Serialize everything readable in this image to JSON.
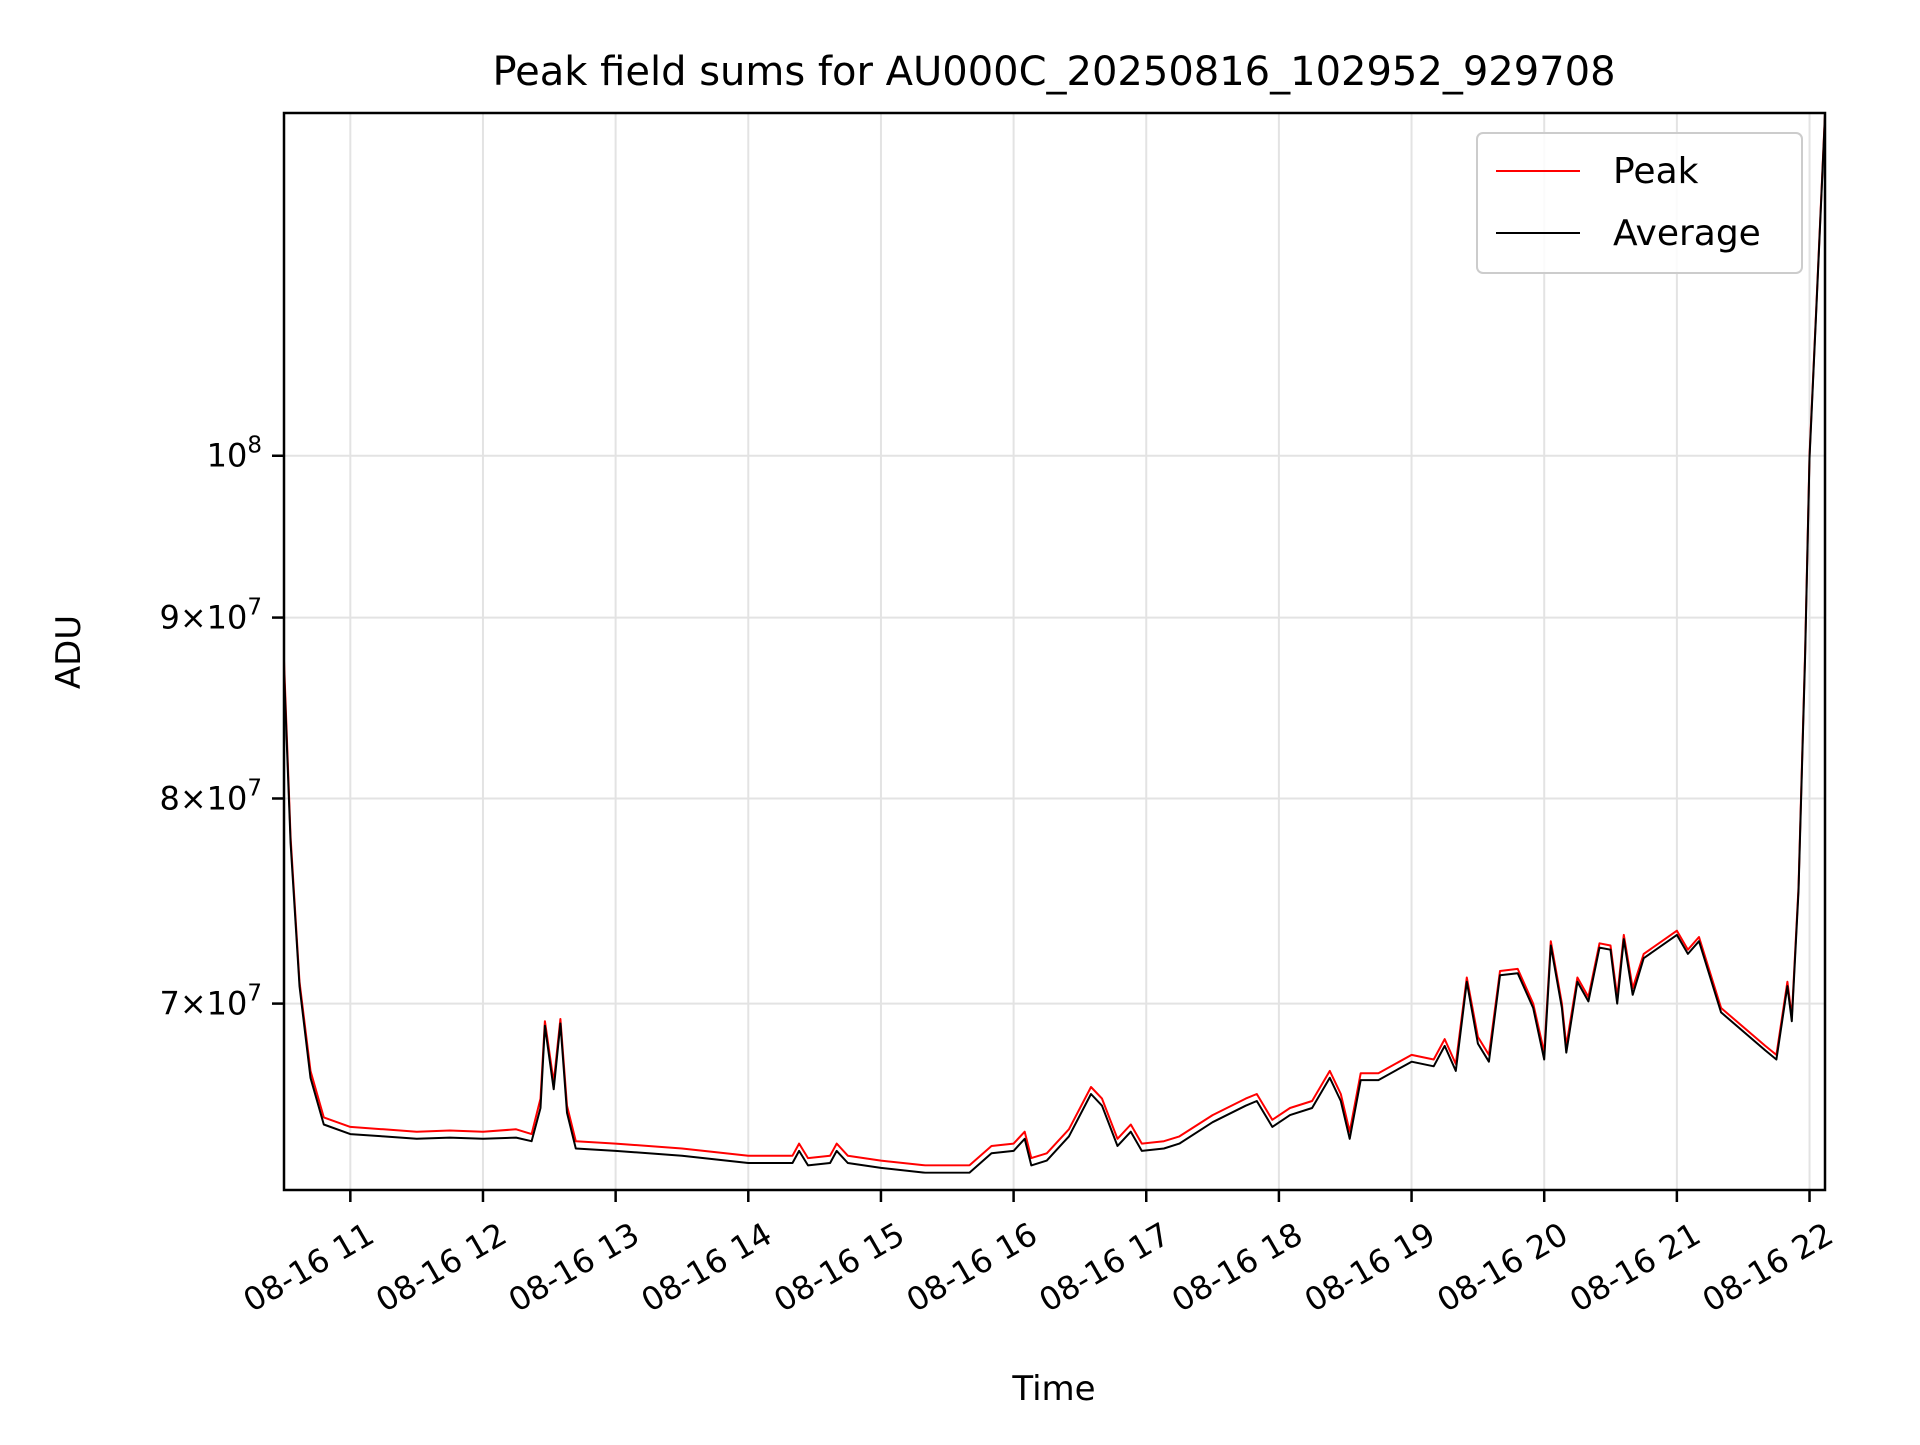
{
  "chart_data": {
    "type": "line",
    "title": "Peak field sums for AU000C_20250816_102952_929708",
    "xlabel": "Time",
    "ylabel": "ADU",
    "y_scale": "log",
    "grid": true,
    "legend_position": "top-right",
    "xlim": [
      "08-16 10:30",
      "08-16 22:07"
    ],
    "ylim": [
      62000000,
      125000000
    ],
    "x_ticks": [
      {
        "value": "08-16 11:00",
        "label": "08-16 11"
      },
      {
        "value": "08-16 12:00",
        "label": "08-16 12"
      },
      {
        "value": "08-16 13:00",
        "label": "08-16 13"
      },
      {
        "value": "08-16 14:00",
        "label": "08-16 14"
      },
      {
        "value": "08-16 15:00",
        "label": "08-16 15"
      },
      {
        "value": "08-16 16:00",
        "label": "08-16 16"
      },
      {
        "value": "08-16 17:00",
        "label": "08-16 17"
      },
      {
        "value": "08-16 18:00",
        "label": "08-16 18"
      },
      {
        "value": "08-16 19:00",
        "label": "08-16 19"
      },
      {
        "value": "08-16 20:00",
        "label": "08-16 20"
      },
      {
        "value": "08-16 21:00",
        "label": "08-16 21"
      },
      {
        "value": "08-16 22:00",
        "label": "08-16 22"
      }
    ],
    "y_ticks": [
      {
        "value": 70000000,
        "coef": "7",
        "exp": "7"
      },
      {
        "value": 80000000,
        "coef": "8",
        "exp": "7"
      },
      {
        "value": 90000000,
        "coef": "9",
        "exp": "7"
      },
      {
        "value": 100000000,
        "coef": "",
        "exp": "8"
      }
    ],
    "series": [
      {
        "name": "Peak",
        "color": "#ff0000",
        "points": [
          [
            "08-16 10:30",
            87500000
          ],
          [
            "08-16 10:33",
            78000000
          ],
          [
            "08-16 10:37",
            71000000
          ],
          [
            "08-16 10:42",
            67000000
          ],
          [
            "08-16 10:48",
            65000000
          ],
          [
            "08-16 11:00",
            64600000
          ],
          [
            "08-16 11:15",
            64500000
          ],
          [
            "08-16 11:30",
            64400000
          ],
          [
            "08-16 11:45",
            64450000
          ],
          [
            "08-16 12:00",
            64400000
          ],
          [
            "08-16 12:15",
            64500000
          ],
          [
            "08-16 12:22",
            64300000
          ],
          [
            "08-16 12:26",
            65800000
          ],
          [
            "08-16 12:28",
            69200000
          ],
          [
            "08-16 12:32",
            66500000
          ],
          [
            "08-16 12:35",
            69300000
          ],
          [
            "08-16 12:38",
            65500000
          ],
          [
            "08-16 12:42",
            64000000
          ],
          [
            "08-16 13:00",
            63900000
          ],
          [
            "08-16 13:30",
            63700000
          ],
          [
            "08-16 14:00",
            63400000
          ],
          [
            "08-16 14:20",
            63400000
          ],
          [
            "08-16 14:23",
            63900000
          ],
          [
            "08-16 14:27",
            63300000
          ],
          [
            "08-16 14:37",
            63400000
          ],
          [
            "08-16 14:40",
            63900000
          ],
          [
            "08-16 14:45",
            63400000
          ],
          [
            "08-16 15:00",
            63200000
          ],
          [
            "08-16 15:20",
            63000000
          ],
          [
            "08-16 15:40",
            63000000
          ],
          [
            "08-16 15:50",
            63800000
          ],
          [
            "08-16 16:00",
            63900000
          ],
          [
            "08-16 16:05",
            64400000
          ],
          [
            "08-16 16:08",
            63300000
          ],
          [
            "08-16 16:15",
            63500000
          ],
          [
            "08-16 16:25",
            64500000
          ],
          [
            "08-16 16:35",
            66300000
          ],
          [
            "08-16 16:40",
            65800000
          ],
          [
            "08-16 16:47",
            64100000
          ],
          [
            "08-16 16:53",
            64700000
          ],
          [
            "08-16 16:58",
            63900000
          ],
          [
            "08-16 17:08",
            64000000
          ],
          [
            "08-16 17:15",
            64200000
          ],
          [
            "08-16 17:30",
            65100000
          ],
          [
            "08-16 17:45",
            65800000
          ],
          [
            "08-16 17:50",
            66000000
          ],
          [
            "08-16 17:57",
            64900000
          ],
          [
            "08-16 18:05",
            65400000
          ],
          [
            "08-16 18:15",
            65700000
          ],
          [
            "08-16 18:23",
            67000000
          ],
          [
            "08-16 18:28",
            66000000
          ],
          [
            "08-16 18:32",
            64400000
          ],
          [
            "08-16 18:37",
            66900000
          ],
          [
            "08-16 18:45",
            66900000
          ],
          [
            "08-16 19:00",
            67700000
          ],
          [
            "08-16 19:10",
            67500000
          ],
          [
            "08-16 19:15",
            68400000
          ],
          [
            "08-16 19:20",
            67300000
          ],
          [
            "08-16 19:25",
            71200000
          ],
          [
            "08-16 19:30",
            68500000
          ],
          [
            "08-16 19:35",
            67700000
          ],
          [
            "08-16 19:40",
            71500000
          ],
          [
            "08-16 19:48",
            71600000
          ],
          [
            "08-16 19:55",
            70000000
          ],
          [
            "08-16 20:00",
            67800000
          ],
          [
            "08-16 20:03",
            72900000
          ],
          [
            "08-16 20:08",
            70000000
          ],
          [
            "08-16 20:10",
            68100000
          ],
          [
            "08-16 20:15",
            71200000
          ],
          [
            "08-16 20:20",
            70300000
          ],
          [
            "08-16 20:25",
            72800000
          ],
          [
            "08-16 20:30",
            72700000
          ],
          [
            "08-16 20:33",
            70300000
          ],
          [
            "08-16 20:36",
            73200000
          ],
          [
            "08-16 20:40",
            70700000
          ],
          [
            "08-16 20:45",
            72300000
          ],
          [
            "08-16 21:00",
            73400000
          ],
          [
            "08-16 21:05",
            72500000
          ],
          [
            "08-16 21:10",
            73100000
          ],
          [
            "08-16 21:20",
            69800000
          ],
          [
            "08-16 21:40",
            68100000
          ],
          [
            "08-16 21:45",
            67700000
          ],
          [
            "08-16 21:50",
            71000000
          ],
          [
            "08-16 21:52",
            69400000
          ],
          [
            "08-16 21:55",
            75500000
          ],
          [
            "08-16 21:58",
            88000000
          ],
          [
            "08-16 22:00",
            100000000
          ],
          [
            "08-16 22:03",
            110000000
          ],
          [
            "08-16 22:07",
            125000000
          ]
        ]
      },
      {
        "name": "Average",
        "color": "#000000",
        "points": [
          [
            "08-16 10:30",
            87000000
          ],
          [
            "08-16 10:33",
            77700000
          ],
          [
            "08-16 10:37",
            70800000
          ],
          [
            "08-16 10:42",
            66700000
          ],
          [
            "08-16 10:48",
            64700000
          ],
          [
            "08-16 11:00",
            64300000
          ],
          [
            "08-16 11:15",
            64200000
          ],
          [
            "08-16 11:30",
            64100000
          ],
          [
            "08-16 11:45",
            64150000
          ],
          [
            "08-16 12:00",
            64100000
          ],
          [
            "08-16 12:15",
            64150000
          ],
          [
            "08-16 12:22",
            64000000
          ],
          [
            "08-16 12:26",
            65400000
          ],
          [
            "08-16 12:28",
            69000000
          ],
          [
            "08-16 12:32",
            66200000
          ],
          [
            "08-16 12:35",
            69100000
          ],
          [
            "08-16 12:38",
            65200000
          ],
          [
            "08-16 12:42",
            63700000
          ],
          [
            "08-16 13:00",
            63600000
          ],
          [
            "08-16 13:30",
            63400000
          ],
          [
            "08-16 14:00",
            63100000
          ],
          [
            "08-16 14:20",
            63100000
          ],
          [
            "08-16 14:23",
            63600000
          ],
          [
            "08-16 14:27",
            63000000
          ],
          [
            "08-16 14:37",
            63100000
          ],
          [
            "08-16 14:40",
            63600000
          ],
          [
            "08-16 14:45",
            63100000
          ],
          [
            "08-16 15:00",
            62900000
          ],
          [
            "08-16 15:20",
            62700000
          ],
          [
            "08-16 15:40",
            62700000
          ],
          [
            "08-16 15:50",
            63500000
          ],
          [
            "08-16 16:00",
            63600000
          ],
          [
            "08-16 16:05",
            64100000
          ],
          [
            "08-16 16:08",
            63000000
          ],
          [
            "08-16 16:15",
            63200000
          ],
          [
            "08-16 16:25",
            64200000
          ],
          [
            "08-16 16:35",
            66000000
          ],
          [
            "08-16 16:40",
            65500000
          ],
          [
            "08-16 16:47",
            63800000
          ],
          [
            "08-16 16:53",
            64400000
          ],
          [
            "08-16 16:58",
            63600000
          ],
          [
            "08-16 17:08",
            63700000
          ],
          [
            "08-16 17:15",
            63900000
          ],
          [
            "08-16 17:30",
            64800000
          ],
          [
            "08-16 17:45",
            65500000
          ],
          [
            "08-16 17:50",
            65700000
          ],
          [
            "08-16 17:57",
            64600000
          ],
          [
            "08-16 18:05",
            65100000
          ],
          [
            "08-16 18:15",
            65400000
          ],
          [
            "08-16 18:23",
            66700000
          ],
          [
            "08-16 18:28",
            65700000
          ],
          [
            "08-16 18:32",
            64100000
          ],
          [
            "08-16 18:37",
            66600000
          ],
          [
            "08-16 18:45",
            66600000
          ],
          [
            "08-16 19:00",
            67400000
          ],
          [
            "08-16 19:10",
            67200000
          ],
          [
            "08-16 19:15",
            68100000
          ],
          [
            "08-16 19:20",
            67000000
          ],
          [
            "08-16 19:25",
            71000000
          ],
          [
            "08-16 19:30",
            68200000
          ],
          [
            "08-16 19:35",
            67400000
          ],
          [
            "08-16 19:40",
            71300000
          ],
          [
            "08-16 19:48",
            71400000
          ],
          [
            "08-16 19:55",
            69800000
          ],
          [
            "08-16 20:00",
            67500000
          ],
          [
            "08-16 20:03",
            72700000
          ],
          [
            "08-16 20:08",
            69800000
          ],
          [
            "08-16 20:10",
            67800000
          ],
          [
            "08-16 20:15",
            71000000
          ],
          [
            "08-16 20:20",
            70100000
          ],
          [
            "08-16 20:25",
            72600000
          ],
          [
            "08-16 20:30",
            72500000
          ],
          [
            "08-16 20:33",
            70000000
          ],
          [
            "08-16 20:36",
            73000000
          ],
          [
            "08-16 20:40",
            70400000
          ],
          [
            "08-16 20:45",
            72100000
          ],
          [
            "08-16 21:00",
            73200000
          ],
          [
            "08-16 21:05",
            72300000
          ],
          [
            "08-16 21:10",
            72900000
          ],
          [
            "08-16 21:20",
            69600000
          ],
          [
            "08-16 21:40",
            67900000
          ],
          [
            "08-16 21:45",
            67500000
          ],
          [
            "08-16 21:50",
            70800000
          ],
          [
            "08-16 21:52",
            69200000
          ],
          [
            "08-16 21:55",
            75300000
          ],
          [
            "08-16 21:58",
            87700000
          ],
          [
            "08-16 22:00",
            99800000
          ],
          [
            "08-16 22:03",
            109800000
          ],
          [
            "08-16 22:07",
            124800000
          ]
        ]
      }
    ]
  }
}
